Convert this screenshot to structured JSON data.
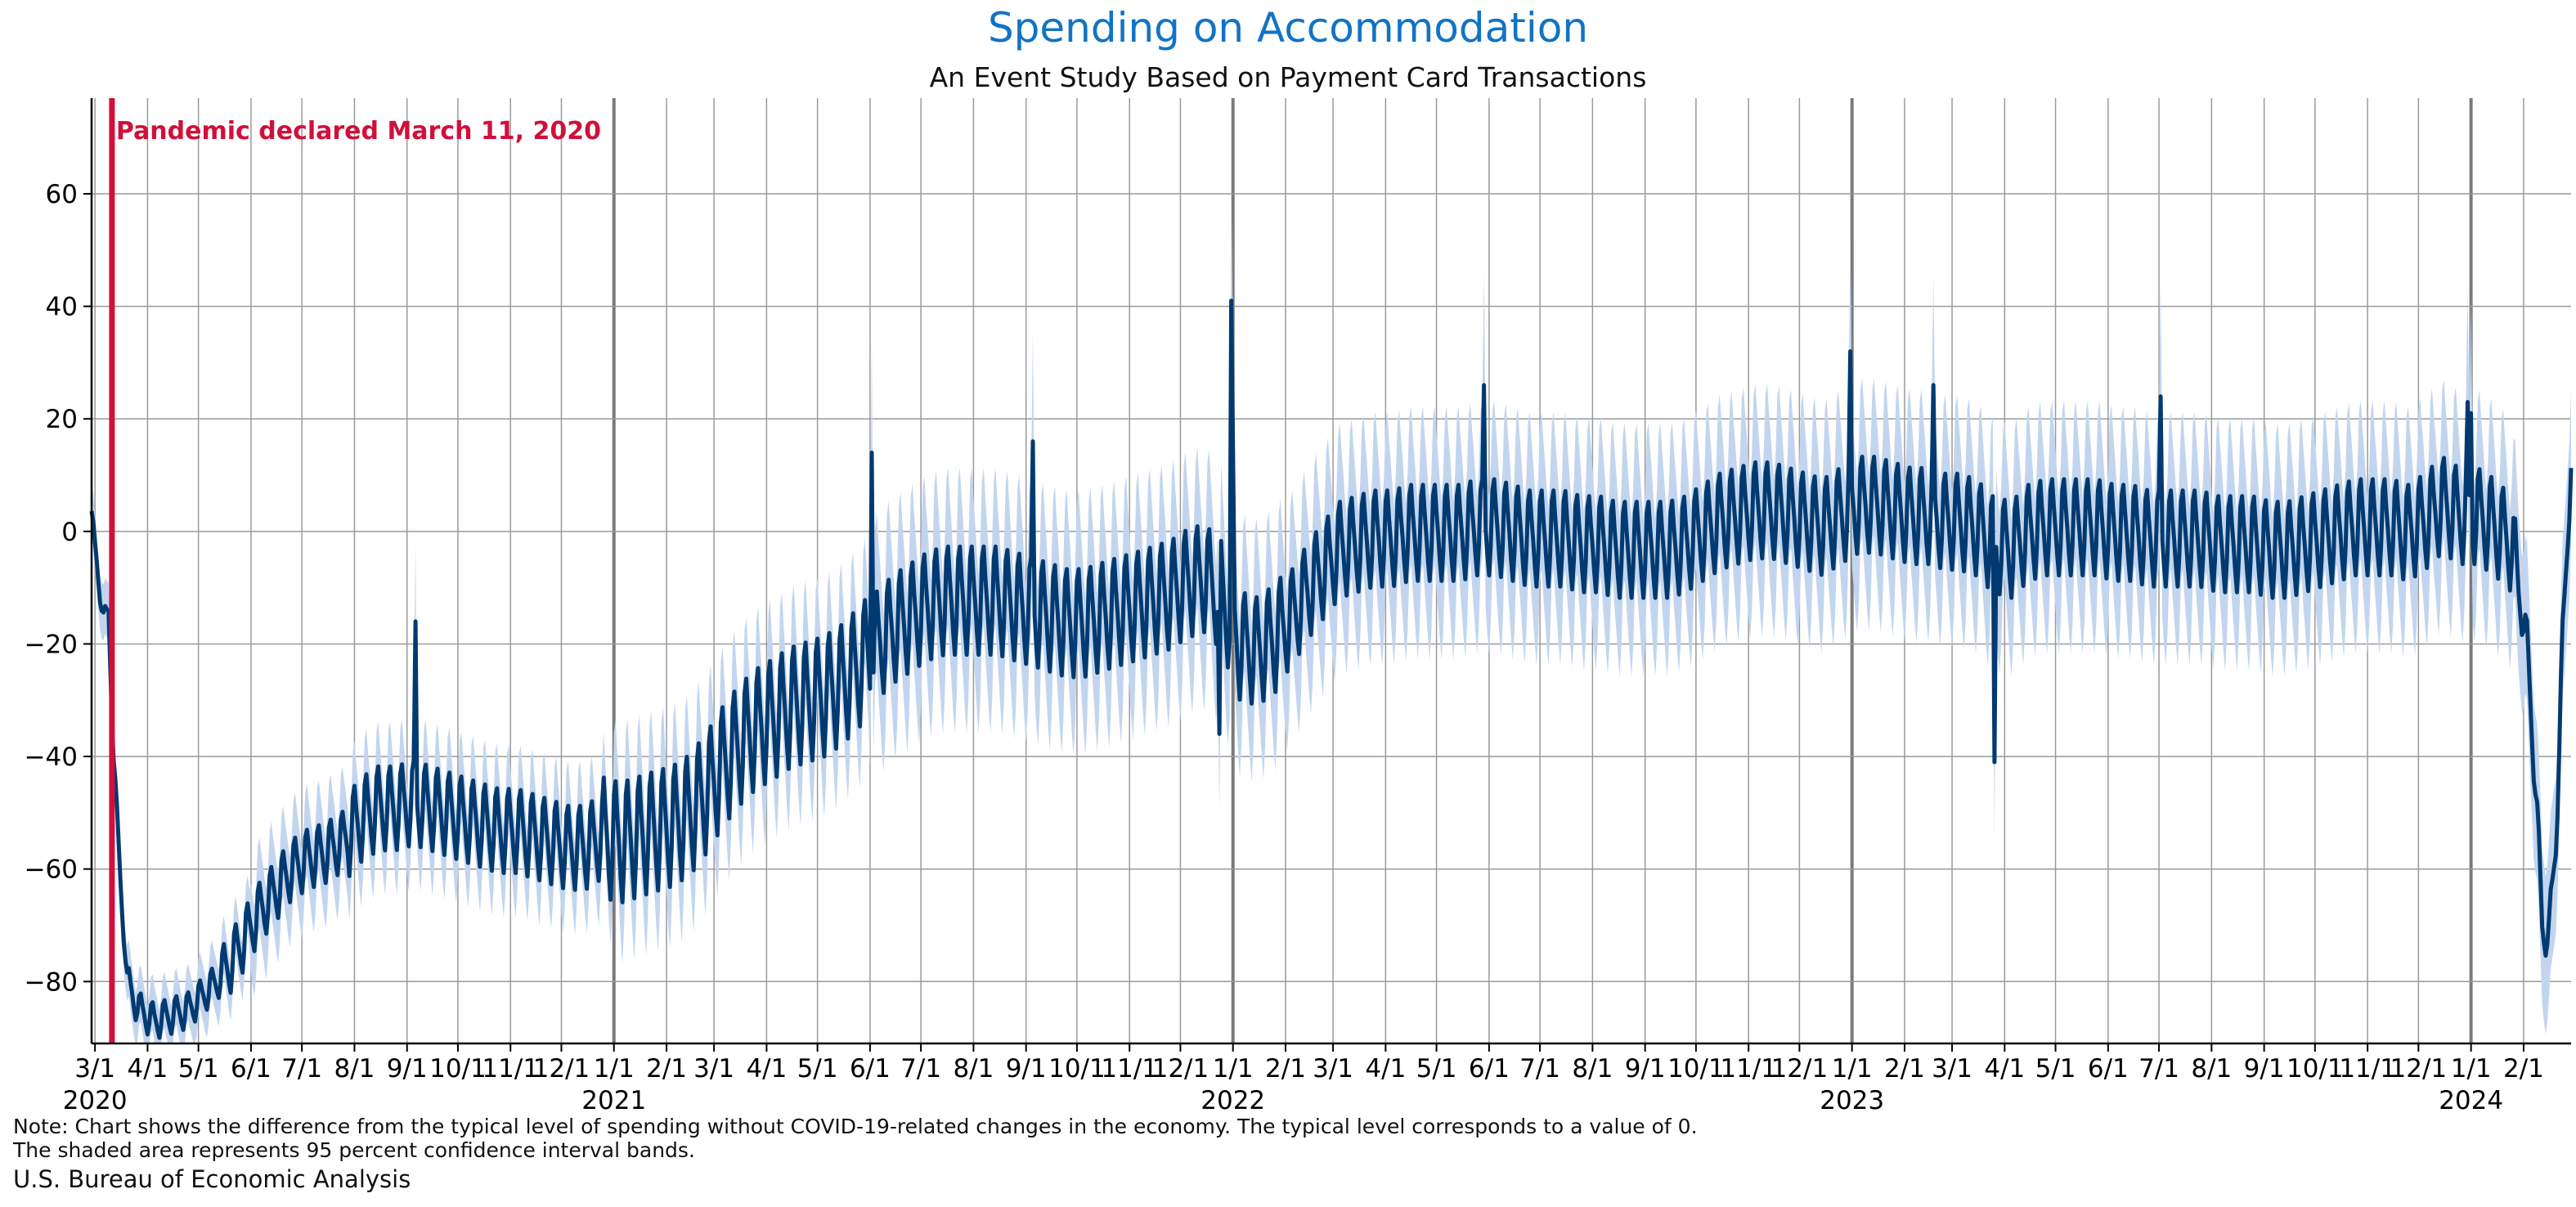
{
  "chart_data": {
    "type": "line",
    "title": "Spending on Accommodation",
    "subtitle": "An Event Study Based on Payment Card Transactions",
    "xlabel": "",
    "ylabel": "",
    "x_range": [
      "2020-02-28",
      "2024-02-29"
    ],
    "ylim": [
      -91,
      77
    ],
    "y_ticks": [
      -80,
      -60,
      -40,
      -20,
      0,
      20,
      40,
      60
    ],
    "grid": true,
    "legend": "none",
    "x_tick_dates": [
      "2020-03-01",
      "2020-04-01",
      "2020-05-01",
      "2020-06-01",
      "2020-07-01",
      "2020-08-01",
      "2020-09-01",
      "2020-10-01",
      "2020-11-01",
      "2020-12-01",
      "2021-01-01",
      "2021-02-01",
      "2021-03-01",
      "2021-04-01",
      "2021-05-01",
      "2021-06-01",
      "2021-07-01",
      "2021-08-01",
      "2021-09-01",
      "2021-10-01",
      "2021-11-01",
      "2021-12-01",
      "2022-01-01",
      "2022-02-01",
      "2022-03-01",
      "2022-04-01",
      "2022-05-01",
      "2022-06-01",
      "2022-07-01",
      "2022-08-01",
      "2022-09-01",
      "2022-10-01",
      "2022-11-01",
      "2022-12-01",
      "2023-01-01",
      "2023-02-01",
      "2023-03-01",
      "2023-04-01",
      "2023-05-01",
      "2023-06-01",
      "2023-07-01",
      "2023-08-01",
      "2023-09-01",
      "2023-10-01",
      "2023-11-01",
      "2023-12-01",
      "2024-01-01",
      "2024-02-01"
    ],
    "x_tick_labels": [
      "3/1",
      "4/1",
      "5/1",
      "6/1",
      "7/1",
      "8/1",
      "9/1",
      "10/1",
      "11/1",
      "12/1",
      "1/1",
      "2/1",
      "3/1",
      "4/1",
      "5/1",
      "6/1",
      "7/1",
      "8/1",
      "9/1",
      "10/1",
      "11/1",
      "12/1",
      "1/1",
      "2/1",
      "3/1",
      "4/1",
      "5/1",
      "6/1",
      "7/1",
      "8/1",
      "9/1",
      "10/1",
      "11/1",
      "12/1",
      "1/1",
      "2/1",
      "3/1",
      "4/1",
      "5/1",
      "6/1",
      "7/1",
      "8/1",
      "9/1",
      "10/1",
      "11/1",
      "12/1",
      "1/1",
      "2/1"
    ],
    "year_labels": [
      {
        "date": "2020-03-01",
        "label": "2020"
      },
      {
        "date": "2021-01-01",
        "label": "2021"
      },
      {
        "date": "2022-01-01",
        "label": "2022"
      },
      {
        "date": "2023-01-01",
        "label": "2023"
      },
      {
        "date": "2024-01-01",
        "label": "2024"
      }
    ],
    "annotation": {
      "date": "2020-03-11",
      "label": "Pandemic declared March 11, 2020",
      "color": "#d0103a"
    },
    "series": [
      {
        "color": "#003a70",
        "points": [
          [
            "2020-02-28",
            2
          ],
          [
            "2020-03-02",
            -5
          ],
          [
            "2020-03-06",
            -16
          ],
          [
            "2020-03-09",
            -14
          ],
          [
            "2020-03-12",
            -40
          ],
          [
            "2020-03-16",
            -62
          ],
          [
            "2020-03-20",
            -80
          ],
          [
            "2020-03-27",
            -85
          ],
          [
            "2020-04-05",
            -87
          ],
          [
            "2020-04-15",
            -86
          ],
          [
            "2020-04-25",
            -85
          ],
          [
            "2020-05-05",
            -82
          ],
          [
            "2020-05-15",
            -79
          ],
          [
            "2020-05-25",
            -74
          ],
          [
            "2020-06-05",
            -68
          ],
          [
            "2020-06-15",
            -64
          ],
          [
            "2020-06-25",
            -60
          ],
          [
            "2020-07-05",
            -58
          ],
          [
            "2020-07-15",
            -57
          ],
          [
            "2020-07-25",
            -55
          ],
          [
            "2020-08-05",
            -51
          ],
          [
            "2020-08-15",
            -49
          ],
          [
            "2020-08-25",
            -49
          ],
          [
            "2020-09-05",
            -48
          ],
          [
            "2020-09-15",
            -49
          ],
          [
            "2020-09-25",
            -50
          ],
          [
            "2020-10-05",
            -51
          ],
          [
            "2020-10-15",
            -52
          ],
          [
            "2020-10-25",
            -53
          ],
          [
            "2020-11-05",
            -53
          ],
          [
            "2020-11-15",
            -54
          ],
          [
            "2020-11-25",
            -55
          ],
          [
            "2020-12-05",
            -56
          ],
          [
            "2020-12-15",
            -56
          ],
          [
            "2020-12-25",
            -54
          ],
          [
            "2021-01-05",
            -55
          ],
          [
            "2021-01-15",
            -54
          ],
          [
            "2021-01-25",
            -53
          ],
          [
            "2021-02-05",
            -52
          ],
          [
            "2021-02-15",
            -50
          ],
          [
            "2021-02-25",
            -46
          ],
          [
            "2021-03-05",
            -42
          ],
          [
            "2021-03-15",
            -38
          ],
          [
            "2021-03-25",
            -35
          ],
          [
            "2021-04-05",
            -33
          ],
          [
            "2021-04-15",
            -31
          ],
          [
            "2021-04-25",
            -30
          ],
          [
            "2021-05-05",
            -29
          ],
          [
            "2021-05-15",
            -27
          ],
          [
            "2021-05-25",
            -24
          ],
          [
            "2021-06-05",
            -20
          ],
          [
            "2021-06-15",
            -17
          ],
          [
            "2021-06-25",
            -15
          ],
          [
            "2021-07-05",
            -13
          ],
          [
            "2021-07-15",
            -12
          ],
          [
            "2021-07-25",
            -12
          ],
          [
            "2021-08-05",
            -12
          ],
          [
            "2021-08-15",
            -12
          ],
          [
            "2021-08-25",
            -13
          ],
          [
            "2021-09-05",
            -14
          ],
          [
            "2021-09-15",
            -15
          ],
          [
            "2021-09-25",
            -16
          ],
          [
            "2021-10-05",
            -16
          ],
          [
            "2021-10-15",
            -15
          ],
          [
            "2021-10-25",
            -14
          ],
          [
            "2021-11-05",
            -13
          ],
          [
            "2021-11-15",
            -12
          ],
          [
            "2021-11-25",
            -11
          ],
          [
            "2021-12-05",
            -9
          ],
          [
            "2021-12-15",
            -8
          ],
          [
            "2021-12-25",
            -11
          ],
          [
            "2022-01-05",
            -20
          ],
          [
            "2022-01-15",
            -21
          ],
          [
            "2022-01-25",
            -19
          ],
          [
            "2022-02-05",
            -15
          ],
          [
            "2022-02-15",
            -10
          ],
          [
            "2022-02-25",
            -6
          ],
          [
            "2022-03-05",
            -3
          ],
          [
            "2022-03-15",
            -2
          ],
          [
            "2022-03-25",
            -1
          ],
          [
            "2022-04-05",
            -1
          ],
          [
            "2022-04-15",
            0
          ],
          [
            "2022-04-25",
            0
          ],
          [
            "2022-05-05",
            0
          ],
          [
            "2022-05-15",
            0
          ],
          [
            "2022-05-25",
            1
          ],
          [
            "2022-06-05",
            1
          ],
          [
            "2022-06-15",
            0
          ],
          [
            "2022-06-25",
            -1
          ],
          [
            "2022-07-05",
            -1
          ],
          [
            "2022-07-15",
            -1
          ],
          [
            "2022-07-25",
            -2
          ],
          [
            "2022-08-05",
            -2
          ],
          [
            "2022-08-15",
            -3
          ],
          [
            "2022-08-25",
            -3
          ],
          [
            "2022-09-05",
            -3
          ],
          [
            "2022-09-15",
            -3
          ],
          [
            "2022-09-25",
            -2
          ],
          [
            "2022-10-05",
            0
          ],
          [
            "2022-10-15",
            2
          ],
          [
            "2022-10-25",
            3
          ],
          [
            "2022-11-05",
            4
          ],
          [
            "2022-11-15",
            4
          ],
          [
            "2022-11-25",
            3
          ],
          [
            "2022-12-05",
            2
          ],
          [
            "2022-12-15",
            1
          ],
          [
            "2022-12-25",
            3
          ],
          [
            "2023-01-05",
            5
          ],
          [
            "2023-01-15",
            5
          ],
          [
            "2023-01-25",
            4
          ],
          [
            "2023-02-05",
            3
          ],
          [
            "2023-02-15",
            3
          ],
          [
            "2023-02-25",
            2
          ],
          [
            "2023-03-05",
            2
          ],
          [
            "2023-03-15",
            1
          ],
          [
            "2023-03-25",
            -2
          ],
          [
            "2023-04-05",
            -3
          ],
          [
            "2023-04-15",
            0
          ],
          [
            "2023-04-25",
            1
          ],
          [
            "2023-05-05",
            1
          ],
          [
            "2023-05-15",
            1
          ],
          [
            "2023-05-25",
            1
          ],
          [
            "2023-06-05",
            0
          ],
          [
            "2023-06-15",
            0
          ],
          [
            "2023-06-25",
            -1
          ],
          [
            "2023-07-05",
            -1
          ],
          [
            "2023-07-15",
            -1
          ],
          [
            "2023-07-25",
            -1
          ],
          [
            "2023-08-05",
            -2
          ],
          [
            "2023-08-15",
            -2
          ],
          [
            "2023-08-25",
            -2
          ],
          [
            "2023-09-05",
            -3
          ],
          [
            "2023-09-15",
            -3
          ],
          [
            "2023-09-25",
            -2
          ],
          [
            "2023-10-05",
            -1
          ],
          [
            "2023-10-15",
            0
          ],
          [
            "2023-10-25",
            1
          ],
          [
            "2023-11-05",
            1
          ],
          [
            "2023-11-15",
            1
          ],
          [
            "2023-11-25",
            0
          ],
          [
            "2023-12-05",
            2
          ],
          [
            "2023-12-15",
            5
          ],
          [
            "2023-12-25",
            3
          ],
          [
            "2024-01-05",
            3
          ],
          [
            "2024-01-15",
            1
          ],
          [
            "2024-01-25",
            -2
          ],
          [
            "2024-02-03",
            -20
          ],
          [
            "2024-02-08",
            -45
          ],
          [
            "2024-02-12",
            -70
          ],
          [
            "2024-02-16",
            -72
          ],
          [
            "2024-02-20",
            -55
          ],
          [
            "2024-02-24",
            -20
          ],
          [
            "2024-02-29",
            13
          ]
        ]
      }
    ]
  },
  "note": {
    "line1": "Note: Chart shows the difference from the typical level of spending without COVID-19-related changes in the economy. The typical level corresponds to a value of 0.",
    "line2": "The shaded area represents 95 percent confidence interval bands."
  },
  "source": "U.S. Bureau of Economic Analysis",
  "colors": {
    "title": "#1273c4",
    "line": "#003a70",
    "band": "#c3d5ee",
    "annotation": "#d0103a",
    "grid": "#9a9a9a",
    "year_grid": "#7a7a7a"
  }
}
